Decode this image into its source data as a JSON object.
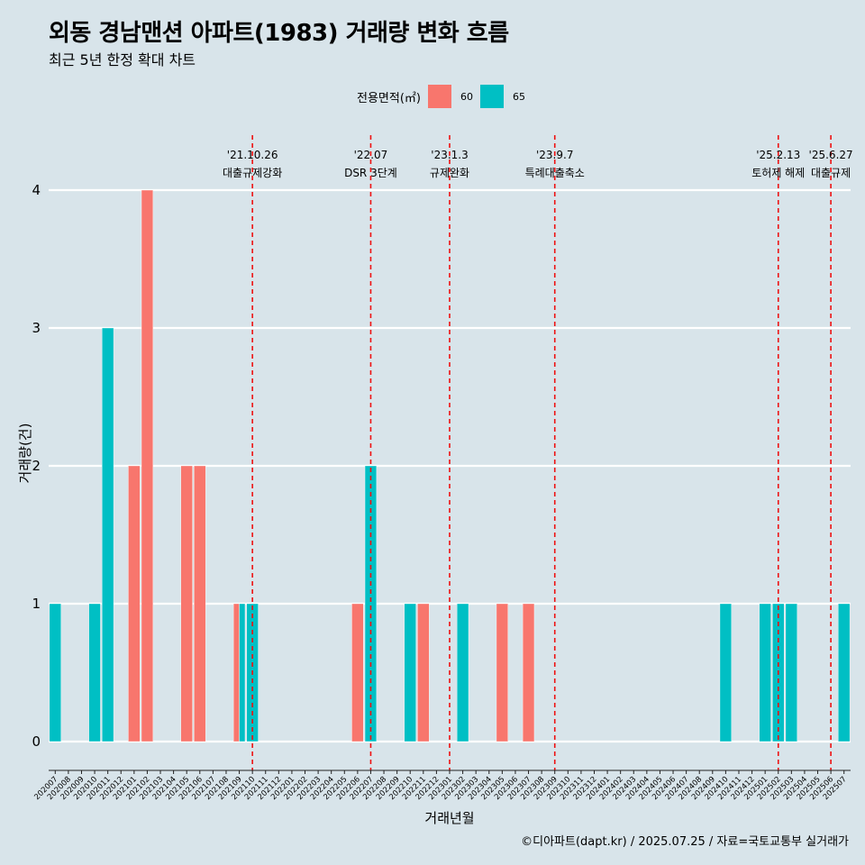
{
  "title": "외동 경남맨션 아파트(1983) 거래량 변화 흐름",
  "subtitle": "최근 5년 한정 확대 차트",
  "caption": "©디아파트(dapt.kr) / 2025.07.25 / 자료=국토교통부 실거래가",
  "legend": {
    "title": "전용면적(㎡)",
    "items": [
      {
        "label": "60",
        "color": "#F8766D"
      },
      {
        "label": "65",
        "color": "#00BFC4"
      }
    ]
  },
  "chart_data": {
    "type": "bar",
    "xlabel": "거래년월",
    "ylabel": "거래량(건)",
    "ylim": [
      0,
      4
    ],
    "yticks": [
      0,
      1,
      2,
      3,
      4
    ],
    "grid": true,
    "legend_position": "top",
    "categories": [
      "202007",
      "202008",
      "202009",
      "202010",
      "202011",
      "202012",
      "202101",
      "202102",
      "202103",
      "202104",
      "202105",
      "202106",
      "202107",
      "202108",
      "202109",
      "202110",
      "202111",
      "202112",
      "202201",
      "202202",
      "202203",
      "202204",
      "202205",
      "202206",
      "202207",
      "202208",
      "202209",
      "202210",
      "202211",
      "202212",
      "202301",
      "202302",
      "202303",
      "202304",
      "202305",
      "202306",
      "202307",
      "202308",
      "202309",
      "202310",
      "202311",
      "202312",
      "202401",
      "202402",
      "202403",
      "202404",
      "202405",
      "202406",
      "202407",
      "202408",
      "202409",
      "202410",
      "202411",
      "202412",
      "202501",
      "202502",
      "202503",
      "202504",
      "202505",
      "202506",
      "202507"
    ],
    "series": [
      {
        "name": "60",
        "color": "#F8766D",
        "values": [
          0,
          0,
          0,
          0,
          0,
          0,
          2,
          4,
          0,
          0,
          2,
          2,
          0,
          0,
          1,
          0,
          0,
          0,
          0,
          0,
          0,
          0,
          0,
          1,
          0,
          0,
          0,
          0,
          1,
          0,
          0,
          0,
          0,
          0,
          1,
          0,
          1,
          0,
          0,
          0,
          0,
          0,
          0,
          0,
          0,
          0,
          0,
          0,
          0,
          0,
          0,
          0,
          0,
          0,
          0,
          0,
          0,
          0,
          0,
          0,
          0
        ]
      },
      {
        "name": "65",
        "color": "#00BFC4",
        "values": [
          1,
          0,
          0,
          1,
          3,
          0,
          0,
          0,
          0,
          0,
          0,
          0,
          0,
          0,
          1,
          1,
          0,
          0,
          0,
          0,
          0,
          0,
          0,
          0,
          2,
          0,
          0,
          1,
          0,
          0,
          0,
          1,
          0,
          0,
          0,
          0,
          0,
          0,
          0,
          0,
          0,
          0,
          0,
          0,
          0,
          0,
          0,
          0,
          0,
          0,
          0,
          1,
          0,
          0,
          1,
          1,
          1,
          0,
          0,
          0,
          1
        ]
      }
    ],
    "annotations": [
      {
        "x": "202110",
        "date": "'21.10.26",
        "label": "대출규제강화"
      },
      {
        "x": "202207",
        "date": "'22.07",
        "label": "DSR 3단계"
      },
      {
        "x": "202301",
        "date": "'23.1.3",
        "label": "규제완화"
      },
      {
        "x": "202309",
        "date": "'23.9.7",
        "label": "특례대출축소"
      },
      {
        "x": "202502",
        "date": "'25.2.13",
        "label": "토허제 해제"
      },
      {
        "x": "202506",
        "date": "'25.6.27",
        "label": "대출규제"
      }
    ]
  }
}
